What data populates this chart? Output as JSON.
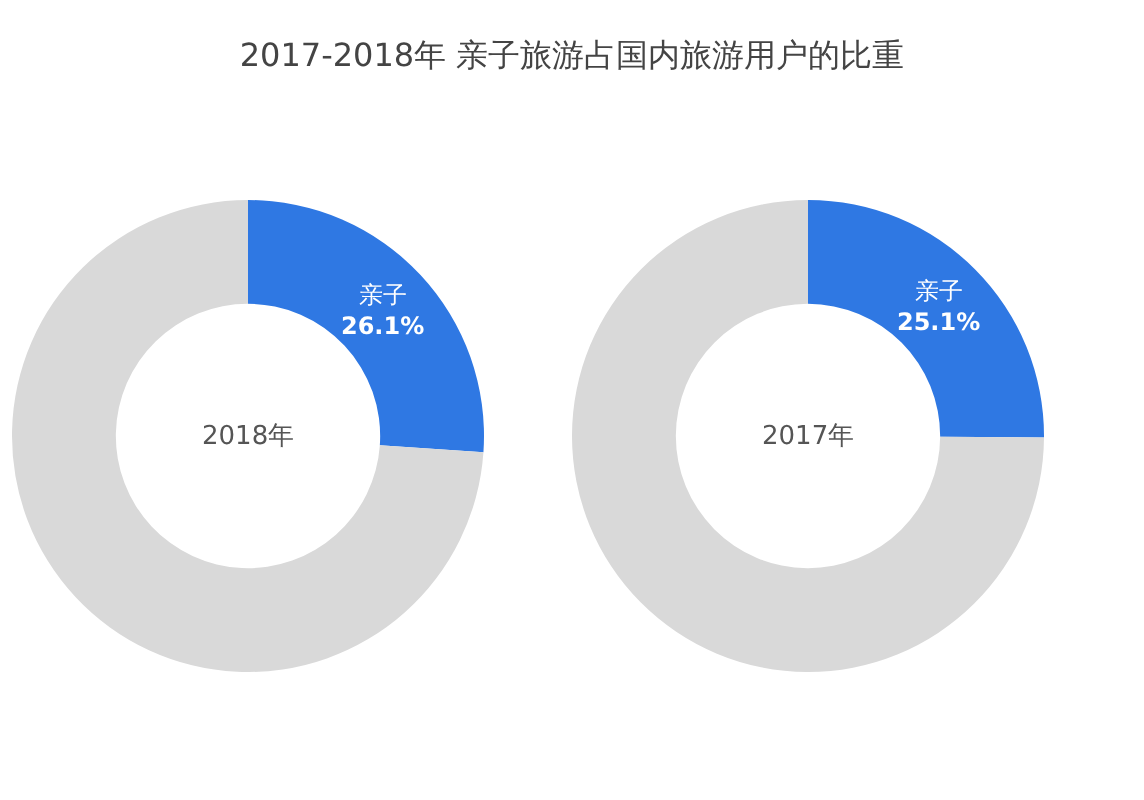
{
  "chart_data": [
    {
      "type": "donut",
      "title": "2017-2018年 亲子旅游占国内旅游用户的比重",
      "annotations": [
        "2018年"
      ],
      "categories": [
        "亲子",
        null
      ],
      "values": [
        26.1,
        73.9
      ],
      "colors": [
        "#2f78e3",
        "#d9d9d9"
      ],
      "value_labels": [
        "26.1%",
        null
      ],
      "legend": false
    },
    {
      "type": "donut",
      "annotations": [
        "2017年"
      ],
      "categories": [
        "亲子",
        null
      ],
      "values": [
        25.1,
        74.9
      ],
      "colors": [
        "#2f78e3",
        "#d9d9d9"
      ],
      "value_labels": [
        "25.1%",
        null
      ],
      "legend": false
    }
  ]
}
